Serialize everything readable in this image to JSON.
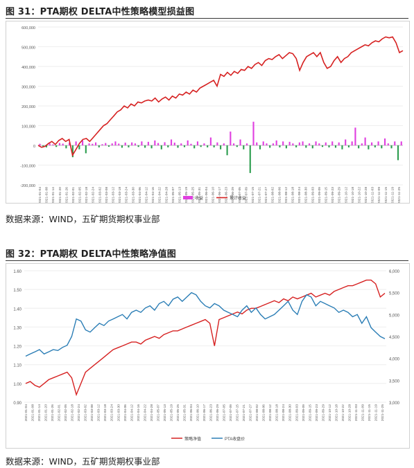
{
  "figure1": {
    "title": "图 31：PTA期权 DELTA中性策略模型损益图",
    "source": "数据来源：WIND，五矿期货期权事业部",
    "legend_labels": [
      "收益",
      "累计收益"
    ]
  },
  "figure2": {
    "title": "图 32：PTA期权 DELTA中性策略净值图",
    "source": "数据来源：WIND，五矿期货期权事业部",
    "legend_labels": [
      "策略净值",
      "PTA收盘价"
    ]
  },
  "colors": {
    "cum": "#d62020",
    "bar_pos": "#e040e0",
    "bar_neg": "#2e9e50",
    "nav": "#d62020",
    "pta": "#2a7db5"
  },
  "chart_data": [
    {
      "type": "bar",
      "ylim": [
        -200000,
        600000
      ],
      "yticks": [
        "600,000",
        "500,000",
        "400,000",
        "300,000",
        "200,000",
        "100,000",
        "0",
        "-100,000",
        "-200,000"
      ],
      "yticks_values": [
        600000,
        500000,
        400000,
        300000,
        200000,
        100000,
        0,
        -100000,
        -200000
      ],
      "x_tick_labels": [
        "2021-01-04",
        "2021-01-08",
        "2021-01-14",
        "2021-01-20",
        "2021-01-26",
        "2021-02-01",
        "2021-02-05",
        "2021-02-18",
        "2021-02-24",
        "2021-03-02",
        "2021-03-08",
        "2021-03-12",
        "2021-03-18",
        "2021-03-24",
        "2021-03-30",
        "2021-04-06",
        "2021-04-12",
        "2021-04-16",
        "2021-04-22",
        "2021-04-28",
        "2021-05-07",
        "2021-05-13",
        "2021-05-19",
        "2021-05-25",
        "2021-05-31",
        "2021-06-04",
        "2021-06-10",
        "2021-06-17",
        "2021-06-23",
        "2021-06-29",
        "2021-07-05",
        "2021-07-09",
        "2021-07-15",
        "2021-07-21",
        "2021-07-27",
        "2021-08-02",
        "2021-08-06",
        "2021-08-12",
        "2021-08-18",
        "2021-08-24",
        "2021-08-30",
        "2021-09-03",
        "2021-09-09",
        "2021-09-15",
        "2021-09-23",
        "2021-09-29",
        "2021-10-12",
        "2021-10-18",
        "2021-10-22",
        "2021-10-28",
        "2021-11-03",
        "2021-11-09",
        "2021-11-15",
        "2021-11-19",
        "2021-11-25"
      ],
      "series": [
        {
          "name": "收益",
          "type": "bar",
          "values": [
            8000,
            -5000,
            -10000,
            10000,
            5000,
            -8000,
            12000,
            9000,
            -15000,
            14000,
            -60000,
            20000,
            -20000,
            25000,
            -40000,
            10000,
            8000,
            15000,
            -10000,
            6000,
            12000,
            -7000,
            10000,
            20000,
            9000,
            -12000,
            14000,
            -10000,
            15000,
            10000,
            -8000,
            20000,
            -12000,
            18000,
            -15000,
            25000,
            12000,
            -20000,
            16000,
            -10000,
            30000,
            14000,
            -12000,
            10000,
            -9000,
            25000,
            8000,
            -15000,
            20000,
            -8000,
            10000,
            -10000,
            40000,
            -10000,
            15000,
            -20000,
            10000,
            -50000,
            70000,
            10000,
            -8000,
            30000,
            -20000,
            10000,
            -140000,
            120000,
            15000,
            -20000,
            20000,
            10000,
            -12000,
            10000,
            25000,
            -10000,
            20000,
            -15000,
            18000,
            10000,
            -10000,
            15000,
            20000,
            -12000,
            10000,
            -15000,
            20000,
            10000,
            -8000,
            15000,
            -10000,
            20000,
            -12000,
            15000,
            -20000,
            30000,
            -10000,
            20000,
            90000,
            -15000,
            10000,
            40000,
            -20000,
            15000,
            -10000,
            20000,
            -15000,
            35000,
            10000,
            -15000,
            20000,
            -75000,
            20000
          ]
        },
        {
          "name": "累计收益",
          "type": "line",
          "values": [
            0,
            -10000,
            -5000,
            10000,
            20000,
            5000,
            25000,
            35000,
            20000,
            30000,
            -50000,
            -20000,
            10000,
            30000,
            35000,
            20000,
            40000,
            60000,
            80000,
            100000,
            110000,
            130000,
            150000,
            170000,
            180000,
            200000,
            190000,
            210000,
            200000,
            220000,
            215000,
            225000,
            230000,
            225000,
            240000,
            220000,
            235000,
            245000,
            230000,
            250000,
            240000,
            260000,
            255000,
            270000,
            260000,
            280000,
            270000,
            290000,
            300000,
            310000,
            320000,
            330000,
            300000,
            360000,
            350000,
            370000,
            355000,
            375000,
            365000,
            385000,
            380000,
            400000,
            390000,
            410000,
            420000,
            405000,
            430000,
            440000,
            435000,
            450000,
            460000,
            440000,
            455000,
            470000,
            465000,
            440000,
            380000,
            420000,
            450000,
            460000,
            470000,
            450000,
            470000,
            420000,
            390000,
            400000,
            430000,
            450000,
            420000,
            440000,
            450000,
            470000,
            480000,
            490000,
            500000,
            510000,
            505000,
            520000,
            530000,
            525000,
            540000,
            550000,
            545000,
            550000,
            520000,
            470000,
            480000
          ]
        }
      ]
    },
    {
      "type": "line",
      "ylim": [
        0.9,
        1.6
      ],
      "yticks": [
        "1.60",
        "1.50",
        "1.40",
        "1.30",
        "1.20",
        "1.10",
        "1.00",
        "0.90"
      ],
      "yticks_values": [
        1.6,
        1.5,
        1.4,
        1.3,
        1.2,
        1.1,
        1.0,
        0.9
      ],
      "y2lim": [
        3000,
        6000
      ],
      "y2ticks": [
        "6,000",
        "5,500",
        "5,000",
        "4,500",
        "4,000",
        "3,500",
        "3,000"
      ],
      "y2ticks_values": [
        6000,
        5500,
        5000,
        4500,
        4000,
        3500,
        3000
      ],
      "x_tick_labels": [
        "2021-01-04",
        "2021-01-08",
        "2021-01-14",
        "2021-01-20",
        "2021-01-26",
        "2021-02-01",
        "2021-02-05",
        "2021-02-18",
        "2021-02-24",
        "2021-03-02",
        "2021-03-08",
        "2021-03-12",
        "2021-03-18",
        "2021-03-24",
        "2021-03-30",
        "2021-04-06",
        "2021-04-12",
        "2021-04-16",
        "2021-04-22",
        "2021-04-28",
        "2021-05-07",
        "2021-05-13",
        "2021-05-19",
        "2021-05-25",
        "2021-05-31",
        "2021-06-04",
        "2021-06-10",
        "2021-06-17",
        "2021-06-23",
        "2021-06-29",
        "2021-07-05",
        "2021-07-09",
        "2021-07-15",
        "2021-07-21",
        "2021-07-27",
        "2021-08-02",
        "2021-08-06",
        "2021-08-12",
        "2021-08-18",
        "2021-08-24",
        "2021-08-30",
        "2021-09-03",
        "2021-09-09",
        "2021-09-15",
        "2021-09-23",
        "2021-09-29",
        "2021-10-12",
        "2021-10-18",
        "2021-10-22",
        "2021-10-28",
        "2021-11-03",
        "2021-11-09",
        "2021-11-15",
        "2021-11-19",
        "2021-11-25"
      ],
      "series": [
        {
          "name": "策略净值",
          "axis": "left",
          "values": [
            1.0,
            1.01,
            0.99,
            0.98,
            1.0,
            1.02,
            1.03,
            1.04,
            1.05,
            1.06,
            1.03,
            0.94,
            1.0,
            1.06,
            1.08,
            1.1,
            1.12,
            1.14,
            1.16,
            1.18,
            1.19,
            1.2,
            1.21,
            1.22,
            1.22,
            1.21,
            1.23,
            1.24,
            1.25,
            1.24,
            1.26,
            1.27,
            1.28,
            1.28,
            1.29,
            1.3,
            1.31,
            1.32,
            1.33,
            1.34,
            1.32,
            1.2,
            1.34,
            1.35,
            1.36,
            1.37,
            1.38,
            1.37,
            1.39,
            1.4,
            1.4,
            1.41,
            1.42,
            1.43,
            1.44,
            1.43,
            1.45,
            1.44,
            1.46,
            1.45,
            1.46,
            1.47,
            1.48,
            1.46,
            1.47,
            1.48,
            1.47,
            1.49,
            1.5,
            1.51,
            1.52,
            1.52,
            1.53,
            1.54,
            1.55,
            1.55,
            1.53,
            1.46,
            1.48
          ]
        },
        {
          "name": "PTA收盘价",
          "axis": "right",
          "values": [
            4050,
            4100,
            4150,
            4200,
            4100,
            4150,
            4200,
            4180,
            4250,
            4300,
            4500,
            4900,
            4850,
            4650,
            4600,
            4700,
            4800,
            4750,
            4850,
            4900,
            4950,
            5000,
            4900,
            5050,
            5100,
            5050,
            5150,
            5200,
            5100,
            5250,
            5300,
            5200,
            5350,
            5400,
            5300,
            5400,
            5500,
            5450,
            5300,
            5200,
            5150,
            5250,
            5200,
            5100,
            5050,
            5000,
            4950,
            5100,
            5200,
            5050,
            5150,
            5000,
            4900,
            4950,
            5000,
            5100,
            5200,
            5300,
            5100,
            5000,
            5300,
            5450,
            5400,
            5200,
            5300,
            5250,
            5200,
            5150,
            5050,
            5100,
            5050,
            4950,
            5000,
            4800,
            4950,
            4700,
            4600,
            4500,
            4450
          ]
        }
      ]
    }
  ]
}
